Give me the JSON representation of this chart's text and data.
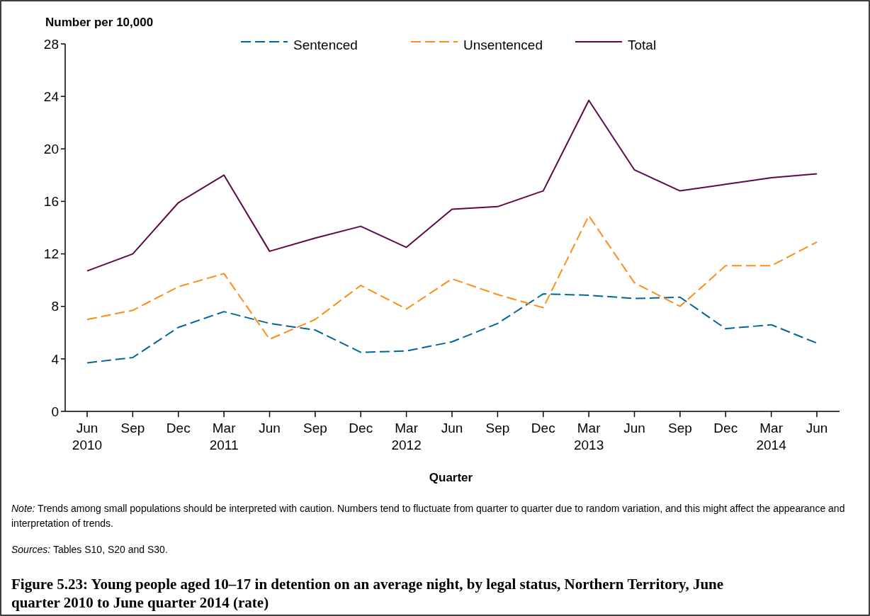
{
  "chart_data": {
    "type": "line",
    "title": "Figure 5.23: Young people aged 10–17 in detention on an average night, by legal status, Northern Territory, June quarter 2010 to June quarter 2014 (rate)",
    "xlabel": "Quarter",
    "ylabel": "Number per 10,000",
    "categories": [
      "Jun\n2010",
      "Sep",
      "Dec",
      "Mar\n2011",
      "Jun",
      "Sep",
      "Dec",
      "Mar\n2012",
      "Jun",
      "Sep",
      "Dec",
      "Mar\n2013",
      "Jun",
      "Sep",
      "Dec",
      "Mar\n2014",
      "Jun"
    ],
    "series": [
      {
        "name": "Sentenced",
        "color": "#006699",
        "line_style": "dashed",
        "values": [
          3.7,
          4.1,
          6.4,
          7.6,
          6.7,
          6.2,
          4.5,
          4.6,
          5.3,
          6.7,
          8.95,
          8.85,
          8.6,
          8.7,
          6.3,
          6.6,
          5.2
        ]
      },
      {
        "name": "Unsentenced",
        "color": "#ff8c1a",
        "line_style": "dashed",
        "values": [
          7.0,
          7.7,
          9.5,
          10.5,
          5.5,
          7.0,
          9.6,
          7.8,
          10.1,
          8.9,
          7.9,
          14.9,
          9.8,
          8.0,
          11.1,
          11.1,
          12.9
        ]
      },
      {
        "name": "Total",
        "color": "#5c0a47",
        "line_style": "solid",
        "values": [
          10.7,
          12.0,
          15.9,
          18.0,
          12.2,
          13.2,
          14.1,
          12.5,
          15.4,
          15.6,
          16.8,
          23.7,
          18.4,
          16.8,
          17.3,
          17.8,
          18.1
        ]
      }
    ],
    "ylim": [
      0,
      28
    ],
    "yticks": [
      0,
      4,
      8,
      12,
      16,
      20,
      24,
      28
    ],
    "grid": false,
    "legend": "top",
    "marker": "none",
    "annotations": [
      "Note: Trends among small populations should be interpreted with caution. Numbers tend to fluctuate from quarter to quarter due to random variation, and this might affect the appearance and interpretation of trends.",
      "Sources: Tables S10, S20 and S30."
    ]
  }
}
